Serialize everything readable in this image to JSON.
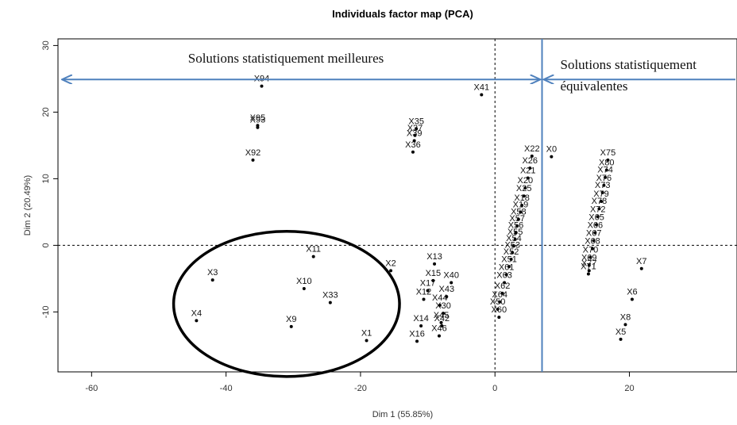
{
  "chart_data": {
    "type": "scatter",
    "title": "Individuals factor map (PCA)",
    "xlabel": "Dim 1 (55.85%)",
    "ylabel": "Dim 2 (20.49%)",
    "xlim": [
      -65,
      36
    ],
    "ylim": [
      -19,
      31
    ],
    "xticks": [
      -60,
      -40,
      -20,
      0,
      20
    ],
    "yticks": [
      -10,
      0,
      10,
      20,
      30
    ],
    "reference_lines": {
      "x": 0,
      "y": 0
    },
    "points": [
      {
        "label": "X94",
        "x": -34.7,
        "y": 23.9
      },
      {
        "label": "X95",
        "x": -35.3,
        "y": 18.0
      },
      {
        "label": "X93",
        "x": -35.3,
        "y": 17.7
      },
      {
        "label": "X92",
        "x": -36.0,
        "y": 12.8
      },
      {
        "label": "X41",
        "x": -2.0,
        "y": 22.6
      },
      {
        "label": "X35",
        "x": -11.7,
        "y": 17.5
      },
      {
        "label": "X37",
        "x": -11.9,
        "y": 16.5
      },
      {
        "label": "X39",
        "x": -12.0,
        "y": 15.7
      },
      {
        "label": "X36",
        "x": -12.2,
        "y": 14.0
      },
      {
        "label": "X22",
        "x": 5.5,
        "y": 13.4
      },
      {
        "label": "X0",
        "x": 8.4,
        "y": 13.3
      },
      {
        "label": "X26",
        "x": 5.2,
        "y": 11.6
      },
      {
        "label": "X21",
        "x": 4.9,
        "y": 10.1
      },
      {
        "label": "X20",
        "x": 4.5,
        "y": 8.6
      },
      {
        "label": "X25",
        "x": 4.3,
        "y": 7.4
      },
      {
        "label": "X18",
        "x": 4.0,
        "y": 6.0
      },
      {
        "label": "X19",
        "x": 3.8,
        "y": 5.0
      },
      {
        "label": "X58",
        "x": 3.5,
        "y": 3.9
      },
      {
        "label": "X57",
        "x": 3.3,
        "y": 2.9
      },
      {
        "label": "X56",
        "x": 3.1,
        "y": 1.9
      },
      {
        "label": "X55",
        "x": 3.0,
        "y": 0.9
      },
      {
        "label": "X54",
        "x": 2.8,
        "y": -0.1
      },
      {
        "label": "X53",
        "x": 2.6,
        "y": -1.1
      },
      {
        "label": "X52",
        "x": 2.4,
        "y": -2.1
      },
      {
        "label": "X51",
        "x": 2.1,
        "y": -3.2
      },
      {
        "label": "X61",
        "x": 1.7,
        "y": -4.4
      },
      {
        "label": "X63",
        "x": 1.4,
        "y": -5.6
      },
      {
        "label": "X62",
        "x": 1.1,
        "y": -7.2
      },
      {
        "label": "X64",
        "x": 0.7,
        "y": -8.5
      },
      {
        "label": "X50",
        "x": 0.4,
        "y": -9.6
      },
      {
        "label": "X60",
        "x": 0.6,
        "y": -10.8
      },
      {
        "label": "X75",
        "x": 16.8,
        "y": 12.8
      },
      {
        "label": "X80",
        "x": 16.6,
        "y": 11.3
      },
      {
        "label": "X74",
        "x": 16.4,
        "y": 10.2
      },
      {
        "label": "X76",
        "x": 16.2,
        "y": 9.0
      },
      {
        "label": "X73",
        "x": 16.0,
        "y": 7.9
      },
      {
        "label": "X79",
        "x": 15.8,
        "y": 6.6
      },
      {
        "label": "X78",
        "x": 15.5,
        "y": 5.5
      },
      {
        "label": "X72",
        "x": 15.3,
        "y": 4.3
      },
      {
        "label": "X65",
        "x": 15.1,
        "y": 3.1
      },
      {
        "label": "X66",
        "x": 14.9,
        "y": 1.9
      },
      {
        "label": "X67",
        "x": 14.7,
        "y": 0.7
      },
      {
        "label": "X68",
        "x": 14.5,
        "y": -0.5
      },
      {
        "label": "X70",
        "x": 14.2,
        "y": -1.8
      },
      {
        "label": "X69",
        "x": 14.0,
        "y": -3.0
      },
      {
        "label": "X77",
        "x": 14.0,
        "y": -3.8
      },
      {
        "label": "X71",
        "x": 13.9,
        "y": -4.3
      },
      {
        "label": "X7",
        "x": 21.8,
        "y": -3.5
      },
      {
        "label": "X6",
        "x": 20.4,
        "y": -8.1
      },
      {
        "label": "X8",
        "x": 19.4,
        "y": -11.9
      },
      {
        "label": "X5",
        "x": 18.7,
        "y": -14.1
      },
      {
        "label": "X11",
        "x": -27.0,
        "y": -1.7
      },
      {
        "label": "X2",
        "x": -15.5,
        "y": -3.8
      },
      {
        "label": "X3",
        "x": -42.0,
        "y": -5.2
      },
      {
        "label": "X10",
        "x": -28.4,
        "y": -6.5
      },
      {
        "label": "X33",
        "x": -24.5,
        "y": -8.6
      },
      {
        "label": "X4",
        "x": -44.4,
        "y": -11.3
      },
      {
        "label": "X9",
        "x": -30.3,
        "y": -12.2
      },
      {
        "label": "X1",
        "x": -19.1,
        "y": -14.3
      },
      {
        "label": "X13",
        "x": -9.0,
        "y": -2.8
      },
      {
        "label": "X15",
        "x": -9.2,
        "y": -5.3
      },
      {
        "label": "X40",
        "x": -6.5,
        "y": -5.6
      },
      {
        "label": "X17",
        "x": -10.0,
        "y": -6.8
      },
      {
        "label": "X43",
        "x": -7.2,
        "y": -7.7
      },
      {
        "label": "X12",
        "x": -10.6,
        "y": -8.1
      },
      {
        "label": "X44",
        "x": -8.2,
        "y": -9.0
      },
      {
        "label": "X30",
        "x": -7.7,
        "y": -10.2
      },
      {
        "label": "X14",
        "x": -11.0,
        "y": -12.1
      },
      {
        "label": "X45",
        "x": -8.0,
        "y": -11.6
      },
      {
        "label": "X42",
        "x": -7.9,
        "y": -12.1
      },
      {
        "label": "X16",
        "x": -11.6,
        "y": -14.4
      },
      {
        "label": "X46",
        "x": -8.3,
        "y": -13.6
      }
    ],
    "annotations": {
      "left_text": "Solutions statistiquement meilleures",
      "right_text_line1": "Solutions statistiquement",
      "right_text_line2": "équivalentes",
      "divider_x": 7.0,
      "arrow_y": 24.9,
      "ellipse": {
        "cx": -31.0,
        "cy": -8.8,
        "rx": 16.8,
        "ry": 10.9
      }
    },
    "colors": {
      "arrow": "#4F81BD",
      "points": "#000000",
      "ellipse": "#000000"
    },
    "grid": false,
    "legend": "none"
  }
}
